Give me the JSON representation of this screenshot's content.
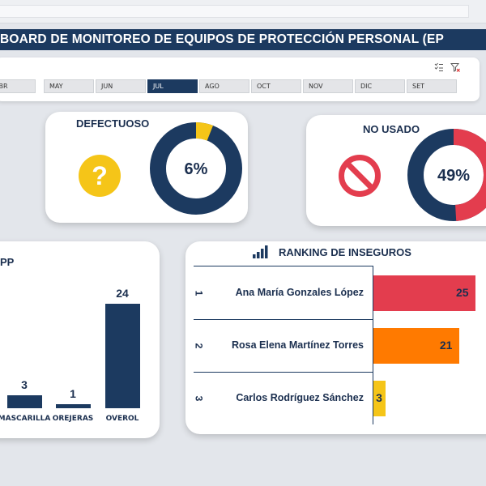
{
  "title": "BOARD DE MONITOREO DE EQUIPOS DE PROTECCIÓN PERSONAL (EP",
  "slicer": {
    "months": [
      "ABR",
      "MAY",
      "JUN",
      "JUL",
      "AGO",
      "OCT",
      "NOV",
      "DIC",
      "SET"
    ],
    "selected": "JUL",
    "icons": [
      "multi-select-icon",
      "clear-filter-icon"
    ]
  },
  "kpi_defectuoso": {
    "title": "DEFECTUOSO",
    "value_label": "6%",
    "percent": 6,
    "icon": "question-icon",
    "colors": {
      "fill": "#f5c518",
      "rest": "#1c3a60"
    }
  },
  "kpi_no_usado": {
    "title": "NO USADO",
    "value_label": "49%",
    "percent": 49,
    "icon": "prohibited-icon",
    "colors": {
      "fill": "#e33d4e",
      "rest": "#1c3a60"
    }
  },
  "epp_chart": {
    "title": "PP",
    "chart_data": {
      "type": "bar",
      "categories": [
        "MASCARILLA",
        "OREJERAS",
        "OVEROL"
      ],
      "values": [
        3,
        1,
        24
      ],
      "value_labels": [
        "3",
        "1",
        "24"
      ],
      "ylim": [
        0,
        24
      ],
      "color": "#1c3a60"
    }
  },
  "ranking": {
    "title": "RANKING DE INSEGUROS",
    "icon": "bar-chart-icon",
    "chart_data": {
      "type": "bar",
      "orientation": "horizontal",
      "ranks": [
        "1",
        "2",
        "3"
      ],
      "categories": [
        "Ana María Gonzales López",
        "Rosa Elena Martínez Torres",
        "Carlos Rodríguez Sánchez"
      ],
      "values": [
        25,
        21,
        3
      ],
      "value_labels": [
        "25",
        "21",
        "3"
      ],
      "colors": [
        "#e33d4e",
        "#ff7a00",
        "#f5c518"
      ],
      "xlim": [
        0,
        25
      ]
    }
  }
}
